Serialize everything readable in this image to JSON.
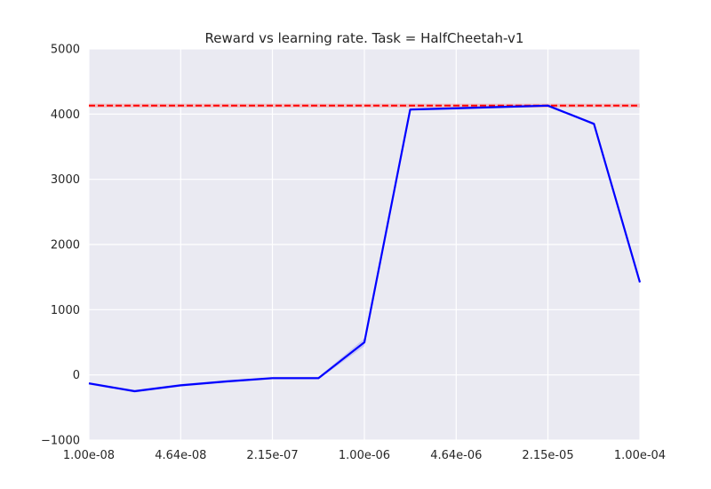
{
  "chart_data": {
    "type": "line",
    "title": "Reward vs learning rate. Task = HalfCheetah-v1",
    "xlabel": "",
    "ylabel": "",
    "x_scale": "log",
    "xlim": [
      1e-08,
      0.0001
    ],
    "ylim": [
      -1000,
      5000
    ],
    "x_ticks": [
      {
        "value": 1e-08,
        "label": "1.00e-08"
      },
      {
        "value": 4.64e-08,
        "label": "4.64e-08"
      },
      {
        "value": 2.15e-07,
        "label": "2.15e-07"
      },
      {
        "value": 1e-06,
        "label": "1.00e-06"
      },
      {
        "value": 4.64e-06,
        "label": "4.64e-06"
      },
      {
        "value": 2.15e-05,
        "label": "2.15e-05"
      },
      {
        "value": 0.0001,
        "label": "1.00e-04"
      }
    ],
    "y_ticks": [
      {
        "value": -1000,
        "label": "−1000"
      },
      {
        "value": 0,
        "label": "0"
      },
      {
        "value": 1000,
        "label": "1000"
      },
      {
        "value": 2000,
        "label": "2000"
      },
      {
        "value": 3000,
        "label": "3000"
      },
      {
        "value": 4000,
        "label": "4000"
      },
      {
        "value": 5000,
        "label": "5000"
      }
    ],
    "grid": true,
    "series": [
      {
        "color": "#0000ff",
        "x": [
          1e-08,
          2.15e-08,
          4.64e-08,
          1e-07,
          2.15e-07,
          4.64e-07,
          1e-06,
          2.15e-06,
          4.64e-06,
          1e-05,
          2.15e-05,
          4.64e-05,
          0.0001
        ],
        "y": [
          -130,
          -250,
          -160,
          -100,
          -50,
          -50,
          500,
          4070,
          4090,
          4110,
          4130,
          3850,
          1420
        ],
        "band": [
          20,
          20,
          20,
          20,
          20,
          20,
          60,
          20,
          20,
          20,
          20,
          20,
          20
        ]
      }
    ],
    "reference_lines": [
      {
        "type": "hline",
        "y": 4130,
        "color": "#ff0000",
        "style": "dashed",
        "band": 30
      }
    ]
  }
}
